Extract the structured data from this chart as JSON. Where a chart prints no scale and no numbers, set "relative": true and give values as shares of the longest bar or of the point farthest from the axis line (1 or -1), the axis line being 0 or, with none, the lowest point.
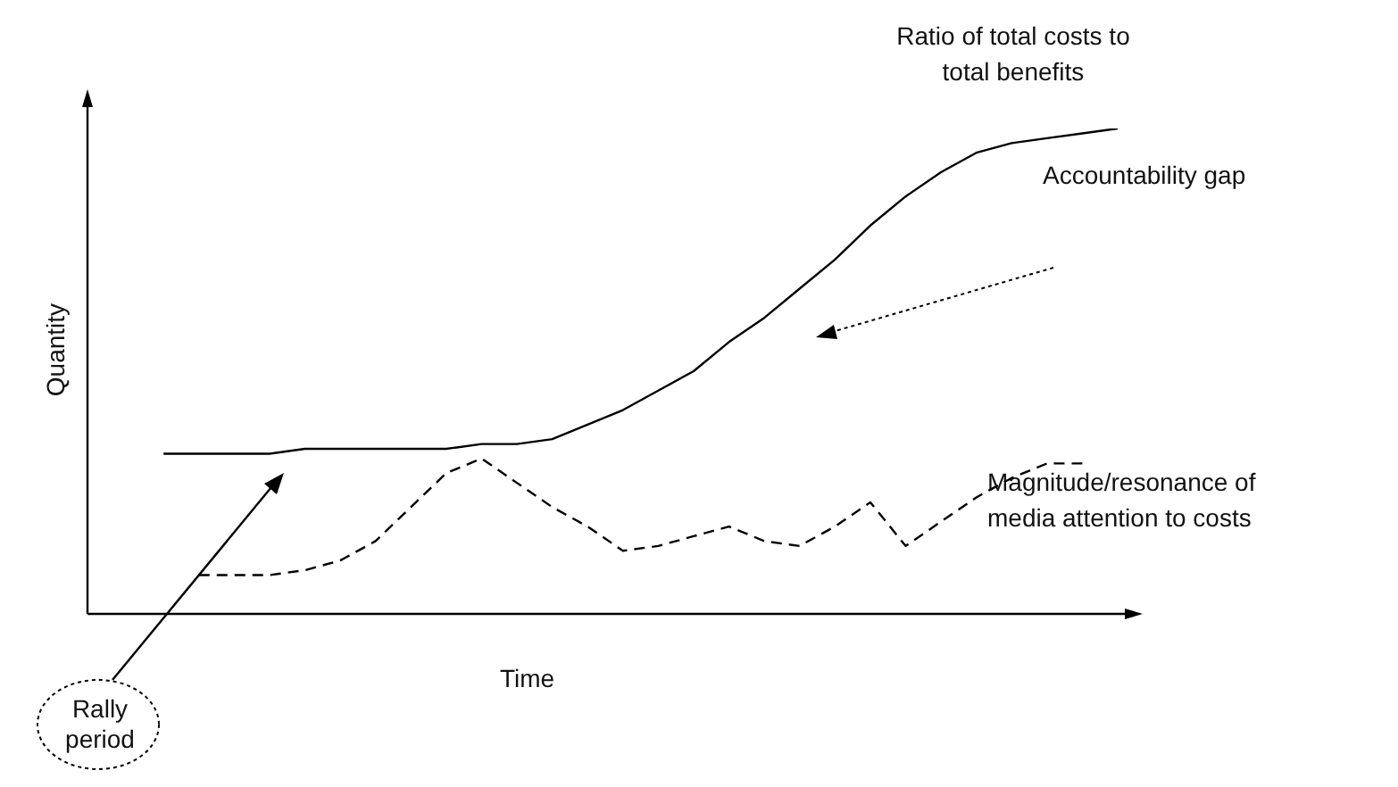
{
  "chart_data": {
    "type": "line",
    "relative": true,
    "xlabel": "Time",
    "ylabel": "Quantity",
    "legend": false,
    "marker": "none",
    "categories": [
      null,
      null,
      null,
      null,
      null,
      null,
      null,
      null,
      null,
      null,
      null,
      null,
      null,
      null,
      null,
      null,
      null,
      null,
      null,
      null,
      null,
      null,
      null,
      null,
      null,
      null,
      null,
      null,
      null,
      null
    ],
    "series": [
      {
        "name": "Ratio of total costs to total benefits",
        "color": "#000000",
        "line_style": "solid",
        "values": [
          null,
          null,
          0.33,
          0.33,
          0.33,
          0.33,
          0.34,
          0.34,
          0.34,
          0.34,
          0.34,
          0.35,
          0.35,
          0.36,
          0.39,
          0.42,
          0.46,
          0.5,
          0.56,
          0.61,
          0.67,
          0.73,
          0.8,
          0.86,
          0.91,
          0.95,
          0.97,
          0.98,
          0.99,
          1
        ]
      },
      {
        "name": "Magnitude/resonance of media attention to costs",
        "color": "#000000",
        "line_style": "dashed",
        "values": [
          null,
          null,
          null,
          0.08,
          0.08,
          0.08,
          0.09,
          0.11,
          0.15,
          0.22,
          0.29,
          0.32,
          0.27,
          0.22,
          0.18,
          0.13,
          0.14,
          0.16,
          0.18,
          0.15,
          0.14,
          0.18,
          0.23,
          0.14,
          0.19,
          0.24,
          0.28,
          0.31,
          0.31,
          null
        ]
      }
    ],
    "annotations": [
      "Accountability gap",
      "Rally period"
    ]
  }
}
